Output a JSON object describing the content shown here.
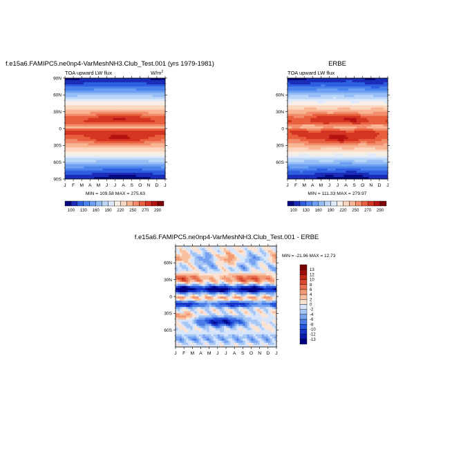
{
  "chart_data": [
    {
      "type": "heatmap",
      "title": "f.e15a6.FAMIPC5.ne0np4-VarMeshNH3.Club_Test.001 (yrs 1979-1981)",
      "field_label": "TOA upward LW flux",
      "units": "W/m",
      "units_sup": "2",
      "stats": "MIN = 109.58 MAX = 275.63",
      "x_ticks": [
        "J",
        "F",
        "M",
        "A",
        "M",
        "J",
        "J",
        "A",
        "S",
        "O",
        "N",
        "D",
        "J"
      ],
      "y_ticks": [
        "90N",
        "60N",
        "30N",
        "0",
        "30S",
        "60S",
        "90S"
      ],
      "colorbar_labels": [
        "100",
        "130",
        "160",
        "190",
        "220",
        "250",
        "270",
        "290"
      ],
      "levels": [
        100,
        115,
        130,
        145,
        160,
        175,
        190,
        205,
        220,
        235,
        250,
        260,
        270,
        280,
        290
      ],
      "colors": [
        "#06087e",
        "#1b2db8",
        "#2f5fe0",
        "#4b82ec",
        "#6da0f2",
        "#95bdf5",
        "#bcd6f8",
        "#deeafb",
        "#f7eee6",
        "#fbd7c0",
        "#f8b594",
        "#f28c6a",
        "#e9603f",
        "#d43522",
        "#b31411",
        "#7e0608"
      ],
      "min": 109.58,
      "max": 275.63
    },
    {
      "type": "heatmap",
      "title": "ERBE",
      "field_label": "TOA upward LW flux",
      "stats": "MIN = 111.33 MAX = 279.97",
      "x_ticks": [
        "J",
        "F",
        "M",
        "A",
        "M",
        "J",
        "J",
        "A",
        "S",
        "O",
        "N",
        "D",
        "J"
      ],
      "y_ticks": [
        "60N",
        "30N",
        "0",
        "30S",
        "60S"
      ],
      "colorbar_labels": [
        "100",
        "130",
        "160",
        "190",
        "220",
        "250",
        "270",
        "290"
      ],
      "levels": [
        100,
        115,
        130,
        145,
        160,
        175,
        190,
        205,
        220,
        235,
        250,
        260,
        270,
        280,
        290
      ],
      "colors": [
        "#06087e",
        "#1b2db8",
        "#2f5fe0",
        "#4b82ec",
        "#6da0f2",
        "#95bdf5",
        "#bcd6f8",
        "#deeafb",
        "#f7eee6",
        "#fbd7c0",
        "#f8b594",
        "#f28c6a",
        "#e9603f",
        "#d43522",
        "#b31411",
        "#7e0608"
      ],
      "min": 111.33,
      "max": 279.97
    },
    {
      "type": "heatmap",
      "title": "f.e15a6.FAMIPC5.ne0np4-VarMeshNH3.Club_Test.001 - ERBE",
      "stats": "MIN = -21.96 MAX = 12.73",
      "x_ticks": [
        "J",
        "F",
        "M",
        "A",
        "M",
        "J",
        "J",
        "A",
        "S",
        "O",
        "N",
        "D",
        "J"
      ],
      "y_ticks": [
        "60N",
        "30N",
        "0",
        "30S",
        "60S"
      ],
      "colorbar_labels": [
        "13",
        "12",
        "10",
        "8",
        "6",
        "4",
        "2",
        "0",
        "-2",
        "-4",
        "-6",
        "-8",
        "-10",
        "-12",
        "-13"
      ],
      "levels": [
        -13,
        -12,
        -10,
        -8,
        -6,
        -4,
        -2,
        0,
        2,
        4,
        6,
        8,
        10,
        12,
        13
      ],
      "colors": [
        "#000080",
        "#0a1aa8",
        "#1533c8",
        "#2755dc",
        "#4a7ce8",
        "#77a3f0",
        "#a6c6f6",
        "#d6e5fb",
        "#fbe3d4",
        "#f8c0a0",
        "#f29a74",
        "#e8714f",
        "#d94a2f",
        "#c22818",
        "#a00d0d",
        "#7a0000"
      ],
      "min": -21.96,
      "max": 12.73
    }
  ]
}
